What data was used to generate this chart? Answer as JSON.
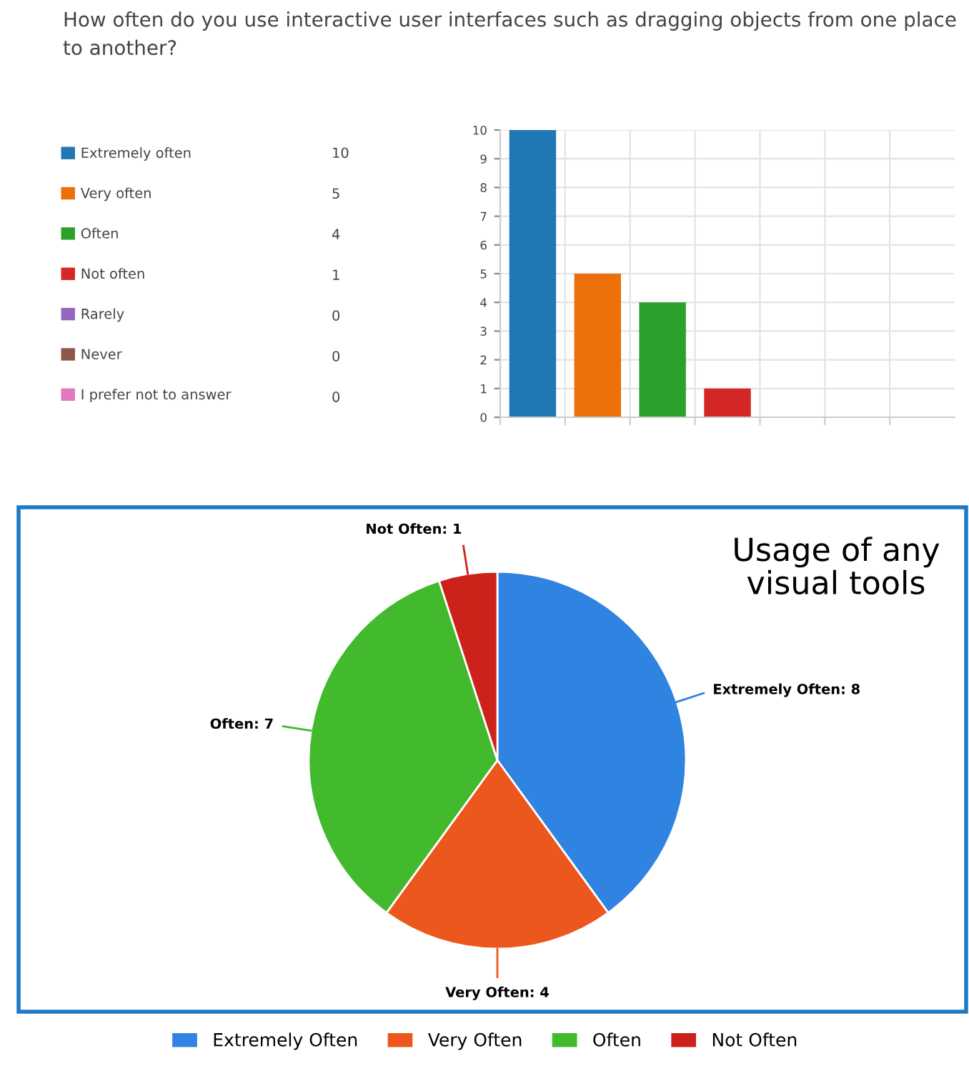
{
  "chart_data": [
    {
      "type": "bar",
      "title": "How often do you use interactive user interfaces such as dragging objects from one place to another?",
      "categories": [
        null,
        null,
        null,
        null,
        null,
        null,
        null
      ],
      "series": [
        {
          "name": "Extremely often",
          "color": "#1f77b4",
          "values": [
            10,
            null,
            null,
            null,
            null,
            null,
            null
          ]
        },
        {
          "name": "Very often",
          "color": "#ec7009",
          "values": [
            null,
            5,
            null,
            null,
            null,
            null,
            null
          ]
        },
        {
          "name": "Often",
          "color": "#2ca02c",
          "values": [
            null,
            null,
            4,
            null,
            null,
            null,
            null
          ]
        },
        {
          "name": "Not often",
          "color": "#d62728",
          "values": [
            null,
            null,
            null,
            1,
            null,
            null,
            null
          ]
        },
        {
          "name": "Rarely",
          "color": "#9467bd",
          "values": [
            null,
            null,
            null,
            null,
            0,
            null,
            null
          ]
        },
        {
          "name": "Never",
          "color": "#8c564b",
          "values": [
            null,
            null,
            null,
            null,
            null,
            0,
            null
          ]
        },
        {
          "name": "I prefer not to answer",
          "color": "#e377c2",
          "values": [
            null,
            null,
            null,
            null,
            null,
            null,
            0
          ]
        }
      ],
      "ylim": [
        0,
        10
      ],
      "yticks": [
        0,
        1,
        2,
        3,
        4,
        5,
        6,
        7,
        8,
        9,
        10
      ],
      "grid": true,
      "legend": "left",
      "tick_labels": "y",
      "annotations": [
        "10",
        "5",
        "4",
        "1",
        "0",
        "0",
        "0"
      ]
    },
    {
      "type": "pie",
      "title": "Usage of any visual tools",
      "categories": [
        "Extremely Often",
        "Very Often",
        "Often",
        "Not Often"
      ],
      "values": [
        8,
        4,
        7,
        1
      ],
      "colors": [
        "#3083e0",
        "#eb571d",
        "#43b92e",
        "#cc221a"
      ],
      "value_labels": [
        "Extremely Often: 8",
        "Very Often: 4",
        "Often: 7",
        "Not Often: 1"
      ],
      "legend": "bottom"
    }
  ]
}
